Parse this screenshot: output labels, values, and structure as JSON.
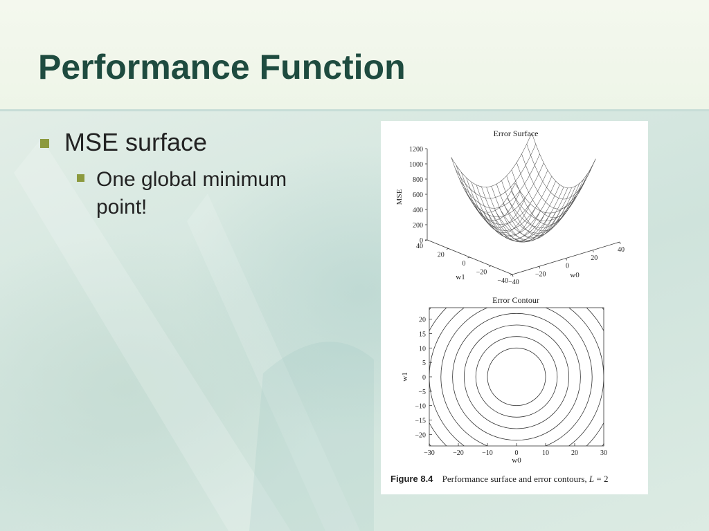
{
  "slide": {
    "title": "Performance Function",
    "bullets": [
      {
        "text": "MSE surface",
        "children": [
          {
            "text": "One global minimum point!"
          }
        ]
      }
    ]
  },
  "figure": {
    "caption_number": "Figure 8.4",
    "caption_text": "Performance surface and error contours,",
    "caption_param": "L",
    "caption_eq": "= 2"
  },
  "chart_data": [
    {
      "type": "surface",
      "title": "Error Surface",
      "zlabel": "MSE",
      "xlabel": "w0",
      "ylabel": "w1",
      "z_ticks": [
        "0",
        "200",
        "400",
        "600",
        "800",
        "1000",
        "1200"
      ],
      "x_ticks": [
        "−40",
        "−20",
        "0",
        "20",
        "40"
      ],
      "y_ticks": [
        "−40",
        "−20",
        "0",
        "20",
        "40"
      ],
      "zlim": [
        0,
        1200
      ],
      "xlim": [
        -40,
        40
      ],
      "ylim": [
        -40,
        40
      ]
    },
    {
      "type": "contour",
      "title": "Error Contour",
      "xlabel": "w0",
      "ylabel": "w1",
      "x_ticks": [
        "−30",
        "−20",
        "−10",
        "0",
        "10",
        "20",
        "30"
      ],
      "y_ticks": [
        "20",
        "15",
        "10",
        "5",
        "0",
        "−5",
        "−10",
        "−15",
        "−20"
      ],
      "xlim": [
        -30,
        30
      ],
      "ylim": [
        -24,
        24
      ],
      "contour_radii": [
        10,
        14,
        18,
        22,
        26,
        30,
        34,
        38
      ]
    }
  ]
}
